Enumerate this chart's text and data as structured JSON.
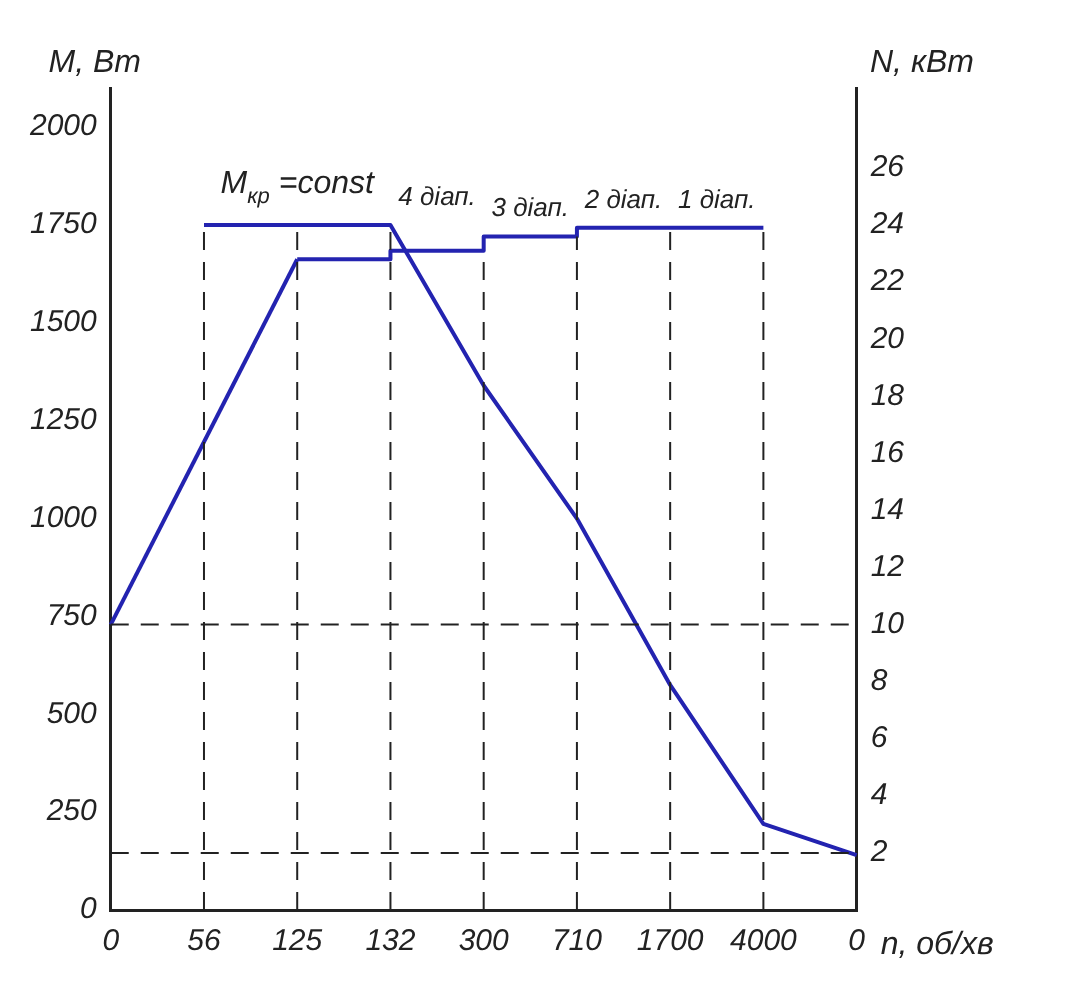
{
  "chart_data": {
    "type": "line",
    "xlabel": "n, об/хв",
    "ylabel": "M, Вт",
    "y2label": "N, кВт",
    "categories": [
      "0",
      "56",
      "125",
      "132",
      "300",
      "710",
      "1700",
      "4000",
      "0"
    ],
    "series": [
      {
        "color": "#2323b0",
        "axis": "y",
        "values": [
          null,
          1750,
          1750,
          1750,
          1340,
          1000,
          575,
          220,
          140
        ]
      },
      {
        "color": "#2323b0",
        "axis": "y2",
        "values": [
          10,
          null,
          22.8,
          null,
          null,
          null,
          null,
          null,
          null
        ]
      },
      {
        "type": "step",
        "color": "#2323b0",
        "axis": "y2",
        "values": [
          null,
          null,
          22.8,
          22.8,
          23.1,
          23.6,
          23.9,
          23.9,
          null
        ]
      }
    ],
    "ylim": [
      0,
      2100
    ],
    "yticks": [
      0,
      250,
      500,
      750,
      1000,
      1250,
      1500,
      1750,
      2000
    ],
    "y2lim": [
      0,
      28.8
    ],
    "y2ticks": [
      2,
      4,
      6,
      8,
      10,
      12,
      14,
      16,
      18,
      20,
      22,
      24,
      26
    ],
    "ref_lines": [
      {
        "axis": "x",
        "value": "56",
        "line_style": "dashed"
      },
      {
        "axis": "x",
        "value": "125",
        "line_style": "dashed"
      },
      {
        "axis": "x",
        "value": "132",
        "line_style": "dashed"
      },
      {
        "axis": "x",
        "value": "300",
        "line_style": "dashed"
      },
      {
        "axis": "x",
        "value": "710",
        "line_style": "dashed"
      },
      {
        "axis": "x",
        "value": "1700",
        "line_style": "dashed"
      },
      {
        "axis": "x",
        "value": "4000",
        "line_style": "dashed"
      },
      {
        "axis": "y2",
        "value": 10,
        "line_style": "dashed"
      },
      {
        "axis": "y2",
        "value": 2,
        "line_style": "dashed"
      }
    ],
    "annotations": [
      "M$_{кр}$ =const",
      "4 діап.",
      "3 діап.",
      "2 діап.",
      "1 діап."
    ],
    "grid": false,
    "legend": false,
    "marker": "none",
    "line_style": "solid"
  }
}
